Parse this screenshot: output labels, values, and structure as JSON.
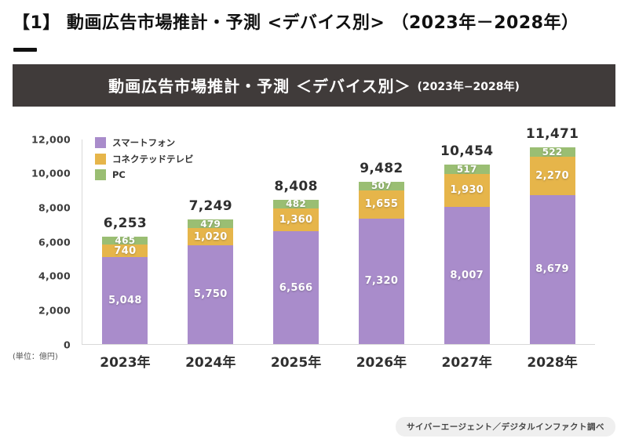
{
  "page": {
    "heading": "【1】 動画広告市場推計・予測 <デバイス別> （2023年－2028年）",
    "banner": {
      "title": "動画広告市場推計・予測 ＜デバイス別＞",
      "subtitle": "(2023年−2028年)"
    },
    "unit_label": "(単位：億円)",
    "source_label": "サイバーエージェント／デジタルインファクト調べ"
  },
  "colors": {
    "smartphone": "#a98ccb",
    "connected_tv": "#e6b54a",
    "pc": "#9abe73",
    "banner_bg": "#403b3a",
    "axis_line": "#d9d9d9",
    "text_dark": "#2f2f2f"
  },
  "chart_data": {
    "type": "bar",
    "stacked": true,
    "title": "動画広告市場推計・予測 ＜デバイス別＞ (2023年−2028年)",
    "xlabel": "",
    "ylabel": "(単位：億円)",
    "categories": [
      "2023年",
      "2024年",
      "2025年",
      "2026年",
      "2027年",
      "2028年"
    ],
    "series": [
      {
        "name": "スマートフォン",
        "color_key": "smartphone",
        "values": [
          5048,
          5750,
          6566,
          7320,
          8007,
          8679
        ]
      },
      {
        "name": "コネクテッドテレビ",
        "color_key": "connected_tv",
        "values": [
          740,
          1020,
          1360,
          1655,
          1930,
          2270
        ]
      },
      {
        "name": "PC",
        "color_key": "pc",
        "values": [
          465,
          479,
          482,
          507,
          517,
          522
        ]
      }
    ],
    "totals": [
      6253,
      7249,
      8408,
      9482,
      10454,
      11471
    ],
    "ylim": [
      0,
      12000
    ],
    "ytick_step": 2000,
    "grid": false,
    "legend_position": "top-left"
  }
}
